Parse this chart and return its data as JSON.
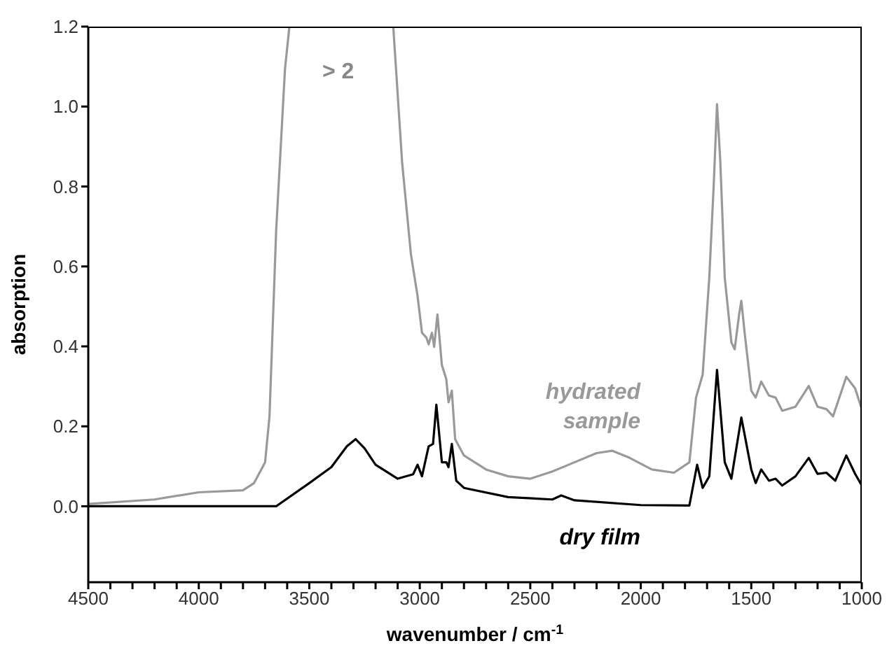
{
  "chart_data": {
    "type": "line",
    "xlabel": "wavenumber / cm$^{-1}$",
    "ylabel": "absorption",
    "xlim": [
      4500,
      1000
    ],
    "ylim": [
      -0.19,
      1.2
    ],
    "xticks": [
      4500,
      {
        "value": 4400,
        "label": null
      },
      {
        "value": 4300,
        "label": null
      },
      {
        "value": 4200,
        "label": null
      },
      {
        "value": 4100,
        "label": null
      },
      4000,
      {
        "value": 3900,
        "label": null
      },
      {
        "value": 3800,
        "label": null
      },
      {
        "value": 3700,
        "label": null
      },
      {
        "value": 3600,
        "label": null
      },
      3500,
      {
        "value": 3400,
        "label": null
      },
      {
        "value": 3300,
        "label": null
      },
      {
        "value": 3200,
        "label": null
      },
      {
        "value": 3100,
        "label": null
      },
      3000,
      {
        "value": 2900,
        "label": null
      },
      {
        "value": 2800,
        "label": null
      },
      {
        "value": 2700,
        "label": null
      },
      {
        "value": 2600,
        "label": null
      },
      2500,
      {
        "value": 2400,
        "label": null
      },
      {
        "value": 2300,
        "label": null
      },
      {
        "value": 2200,
        "label": null
      },
      {
        "value": 2100,
        "label": null
      },
      2000,
      {
        "value": 1900,
        "label": null
      },
      {
        "value": 1800,
        "label": null
      },
      {
        "value": 1700,
        "label": null
      },
      {
        "value": 1600,
        "label": null
      },
      1500,
      {
        "value": 1400,
        "label": null
      },
      {
        "value": 1300,
        "label": null
      },
      {
        "value": 1200,
        "label": null
      },
      {
        "value": 1100,
        "label": null
      },
      1000
    ],
    "yticks": [
      {
        "value": 0,
        "label": "0.0"
      },
      {
        "value": 0.2,
        "label": "0.2"
      },
      {
        "value": 0.4,
        "label": "0.4"
      },
      {
        "value": 0.6,
        "label": "0.6"
      },
      {
        "value": 0.8,
        "label": "0.8"
      },
      {
        "value": 1,
        "label": "1.0"
      },
      {
        "value": 1.2,
        "label": "1.2"
      }
    ],
    "legend": false,
    "marker": "none",
    "line_style": "solid",
    "annotations": [
      "> 2"
    ],
    "series": [
      {
        "name": "hydrated sample",
        "color": "#999999",
        "x": [
          4500,
          4200,
          4000,
          3800,
          3750,
          3700,
          3680,
          3650,
          3610,
          3590,
          3350,
          3120,
          3080,
          3040,
          3010,
          2990,
          2970,
          2960,
          2945,
          2935,
          2920,
          2900,
          2880,
          2870,
          2855,
          2840,
          2800,
          2700,
          2600,
          2500,
          2400,
          2300,
          2200,
          2130,
          2050,
          1950,
          1850,
          1780,
          1750,
          1720,
          1690,
          1670,
          1655,
          1640,
          1620,
          1590,
          1575,
          1555,
          1545,
          1530,
          1500,
          1480,
          1455,
          1420,
          1390,
          1360,
          1300,
          1240,
          1200,
          1160,
          1130,
          1070,
          1030,
          1000
        ],
        "values": [
          0.006,
          0.017,
          0.035,
          0.04,
          0.058,
          0.11,
          0.225,
          0.688,
          1.093,
          1.2,
          null,
          1.2,
          0.861,
          0.63,
          0.526,
          0.434,
          0.422,
          0.405,
          0.434,
          0.399,
          0.48,
          0.353,
          0.318,
          0.26,
          0.289,
          0.168,
          0.127,
          0.092,
          0.075,
          0.069,
          0.087,
          0.11,
          0.133,
          0.139,
          0.121,
          0.092,
          0.084,
          0.11,
          0.272,
          0.329,
          0.572,
          0.803,
          1.006,
          0.861,
          0.572,
          0.41,
          0.393,
          0.48,
          0.514,
          0.434,
          0.289,
          0.272,
          0.312,
          0.277,
          0.272,
          0.239,
          0.249,
          0.301,
          0.249,
          0.243,
          0.225,
          0.324,
          0.295,
          0.243
        ]
      },
      {
        "name": "dry film",
        "color": "#000000",
        "x": [
          4500,
          3800,
          3650,
          3500,
          3400,
          3330,
          3290,
          3250,
          3200,
          3100,
          3030,
          3010,
          2990,
          2960,
          2940,
          2925,
          2900,
          2880,
          2870,
          2855,
          2835,
          2800,
          2600,
          2400,
          2360,
          2300,
          2000,
          1780,
          1745,
          1720,
          1690,
          1655,
          1620,
          1590,
          1545,
          1500,
          1480,
          1455,
          1420,
          1390,
          1360,
          1300,
          1240,
          1200,
          1160,
          1120,
          1070,
          1030,
          1000
        ],
        "values": [
          0,
          0,
          0,
          0.058,
          0.098,
          0.15,
          0.168,
          0.145,
          0.104,
          0.069,
          0.08,
          0.104,
          0.075,
          0.15,
          0.156,
          0.254,
          0.11,
          0.11,
          0.098,
          0.156,
          0.064,
          0.046,
          0.023,
          0.017,
          0.027,
          0.015,
          0.003,
          0.002,
          0.104,
          0.046,
          0.075,
          0.341,
          0.11,
          0.069,
          0.222,
          0.092,
          0.058,
          0.092,
          0.064,
          0.069,
          0.052,
          0.075,
          0.121,
          0.081,
          0.084,
          0.064,
          0.127,
          0.081,
          0.052
        ]
      }
    ]
  }
}
